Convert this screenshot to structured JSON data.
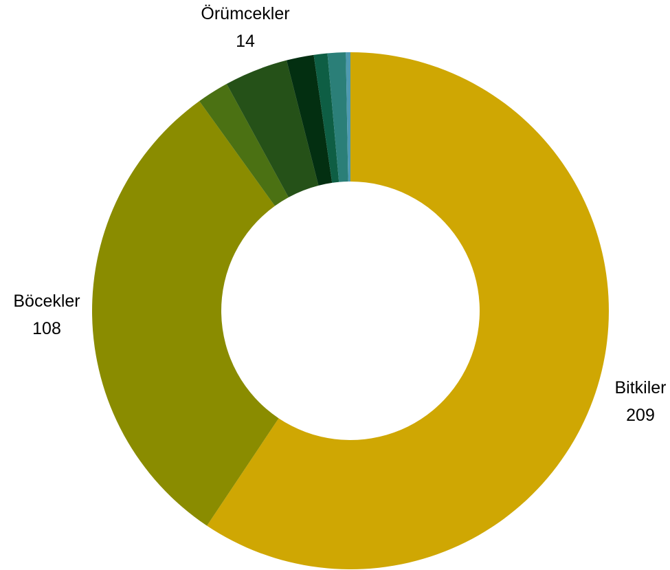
{
  "chart_data": {
    "type": "pie",
    "donut": true,
    "legend": "none",
    "slices": [
      {
        "name": "Bitkiler",
        "value": 209,
        "color": "#cfa703",
        "labeled": true
      },
      {
        "name": "Böcekler",
        "value": 108,
        "color": "#8a8c00",
        "labeled": true
      },
      {
        "name": "",
        "value": 7,
        "color": "#4b7113",
        "labeled": false
      },
      {
        "name": "Örümcekler",
        "value": 14,
        "color": "#255118",
        "labeled": true
      },
      {
        "name": "",
        "value": 6,
        "color": "#032f11",
        "labeled": false
      },
      {
        "name": "",
        "value": 3,
        "color": "#0e5e44",
        "labeled": false
      },
      {
        "name": "",
        "value": 4,
        "color": "#2b7f78",
        "labeled": false
      },
      {
        "name": "",
        "value": 1,
        "color": "#4f9ab0",
        "labeled": false
      }
    ]
  }
}
